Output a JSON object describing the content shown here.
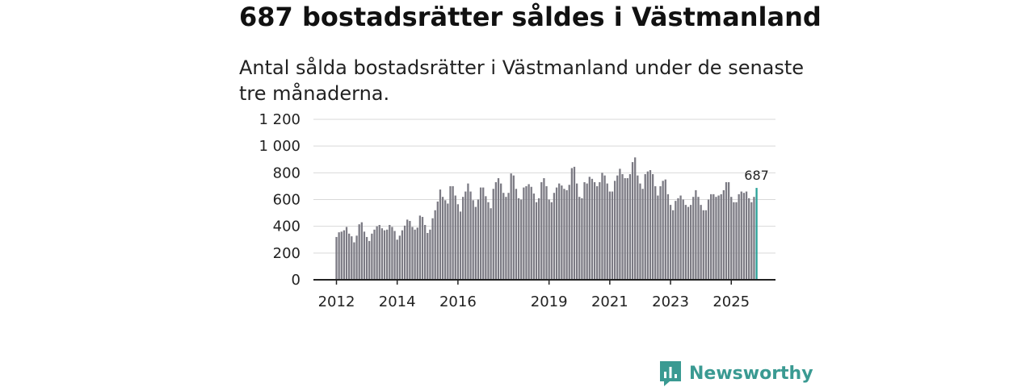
{
  "title": "687 bostadsrätter såldes i Västmanland",
  "subtitle": "Antal sålda bostadsrätter i Västmanland under de senaste tre månaderna.",
  "brand": {
    "name": "Newsworthy"
  },
  "colors": {
    "bar": "#7c7b84",
    "highlight": "#2aa198",
    "grid": "#d9d9d9",
    "axis": "#222222",
    "brand": "#3a9a92"
  },
  "chart_data": {
    "type": "bar",
    "title": "Antal sålda bostadsrätter i Västmanland under de senaste tre månaderna.",
    "xlabel": "",
    "ylabel": "",
    "ylim": [
      0,
      1200
    ],
    "yticks": [
      0,
      200,
      400,
      600,
      800,
      1000,
      1200
    ],
    "ytick_labels": [
      "0",
      "200",
      "400",
      "600",
      "800",
      "1 000",
      "1 200"
    ],
    "xticks": [
      {
        "label": "2012",
        "index": 0
      },
      {
        "label": "2014",
        "index": 24
      },
      {
        "label": "2016",
        "index": 48
      },
      {
        "label": "2019",
        "index": 84
      },
      {
        "label": "2021",
        "index": 108
      },
      {
        "label": "2023",
        "index": 132
      },
      {
        "label": "2025",
        "index": 156
      }
    ],
    "start": "2012-01",
    "frequency": "monthly",
    "highlight_label": "687",
    "values": [
      320,
      355,
      360,
      370,
      395,
      345,
      325,
      280,
      330,
      415,
      430,
      360,
      320,
      290,
      345,
      375,
      400,
      410,
      385,
      370,
      375,
      410,
      395,
      365,
      300,
      330,
      370,
      405,
      450,
      440,
      395,
      375,
      390,
      480,
      470,
      410,
      350,
      375,
      460,
      520,
      585,
      675,
      620,
      595,
      570,
      700,
      700,
      630,
      565,
      510,
      620,
      660,
      720,
      660,
      595,
      545,
      600,
      690,
      690,
      625,
      580,
      535,
      680,
      730,
      760,
      720,
      650,
      620,
      650,
      795,
      780,
      680,
      610,
      600,
      690,
      700,
      715,
      695,
      645,
      580,
      610,
      730,
      760,
      700,
      600,
      580,
      650,
      690,
      720,
      705,
      680,
      670,
      710,
      835,
      845,
      720,
      620,
      610,
      730,
      720,
      770,
      755,
      730,
      700,
      730,
      800,
      780,
      720,
      660,
      660,
      740,
      780,
      830,
      790,
      760,
      760,
      790,
      880,
      915,
      780,
      720,
      680,
      790,
      810,
      820,
      790,
      700,
      630,
      700,
      740,
      750,
      640,
      560,
      520,
      590,
      610,
      630,
      600,
      560,
      545,
      560,
      620,
      670,
      620,
      560,
      520,
      520,
      600,
      640,
      640,
      620,
      630,
      640,
      670,
      730,
      730,
      620,
      580,
      580,
      640,
      660,
      650,
      660,
      610,
      580,
      620,
      687
    ]
  }
}
